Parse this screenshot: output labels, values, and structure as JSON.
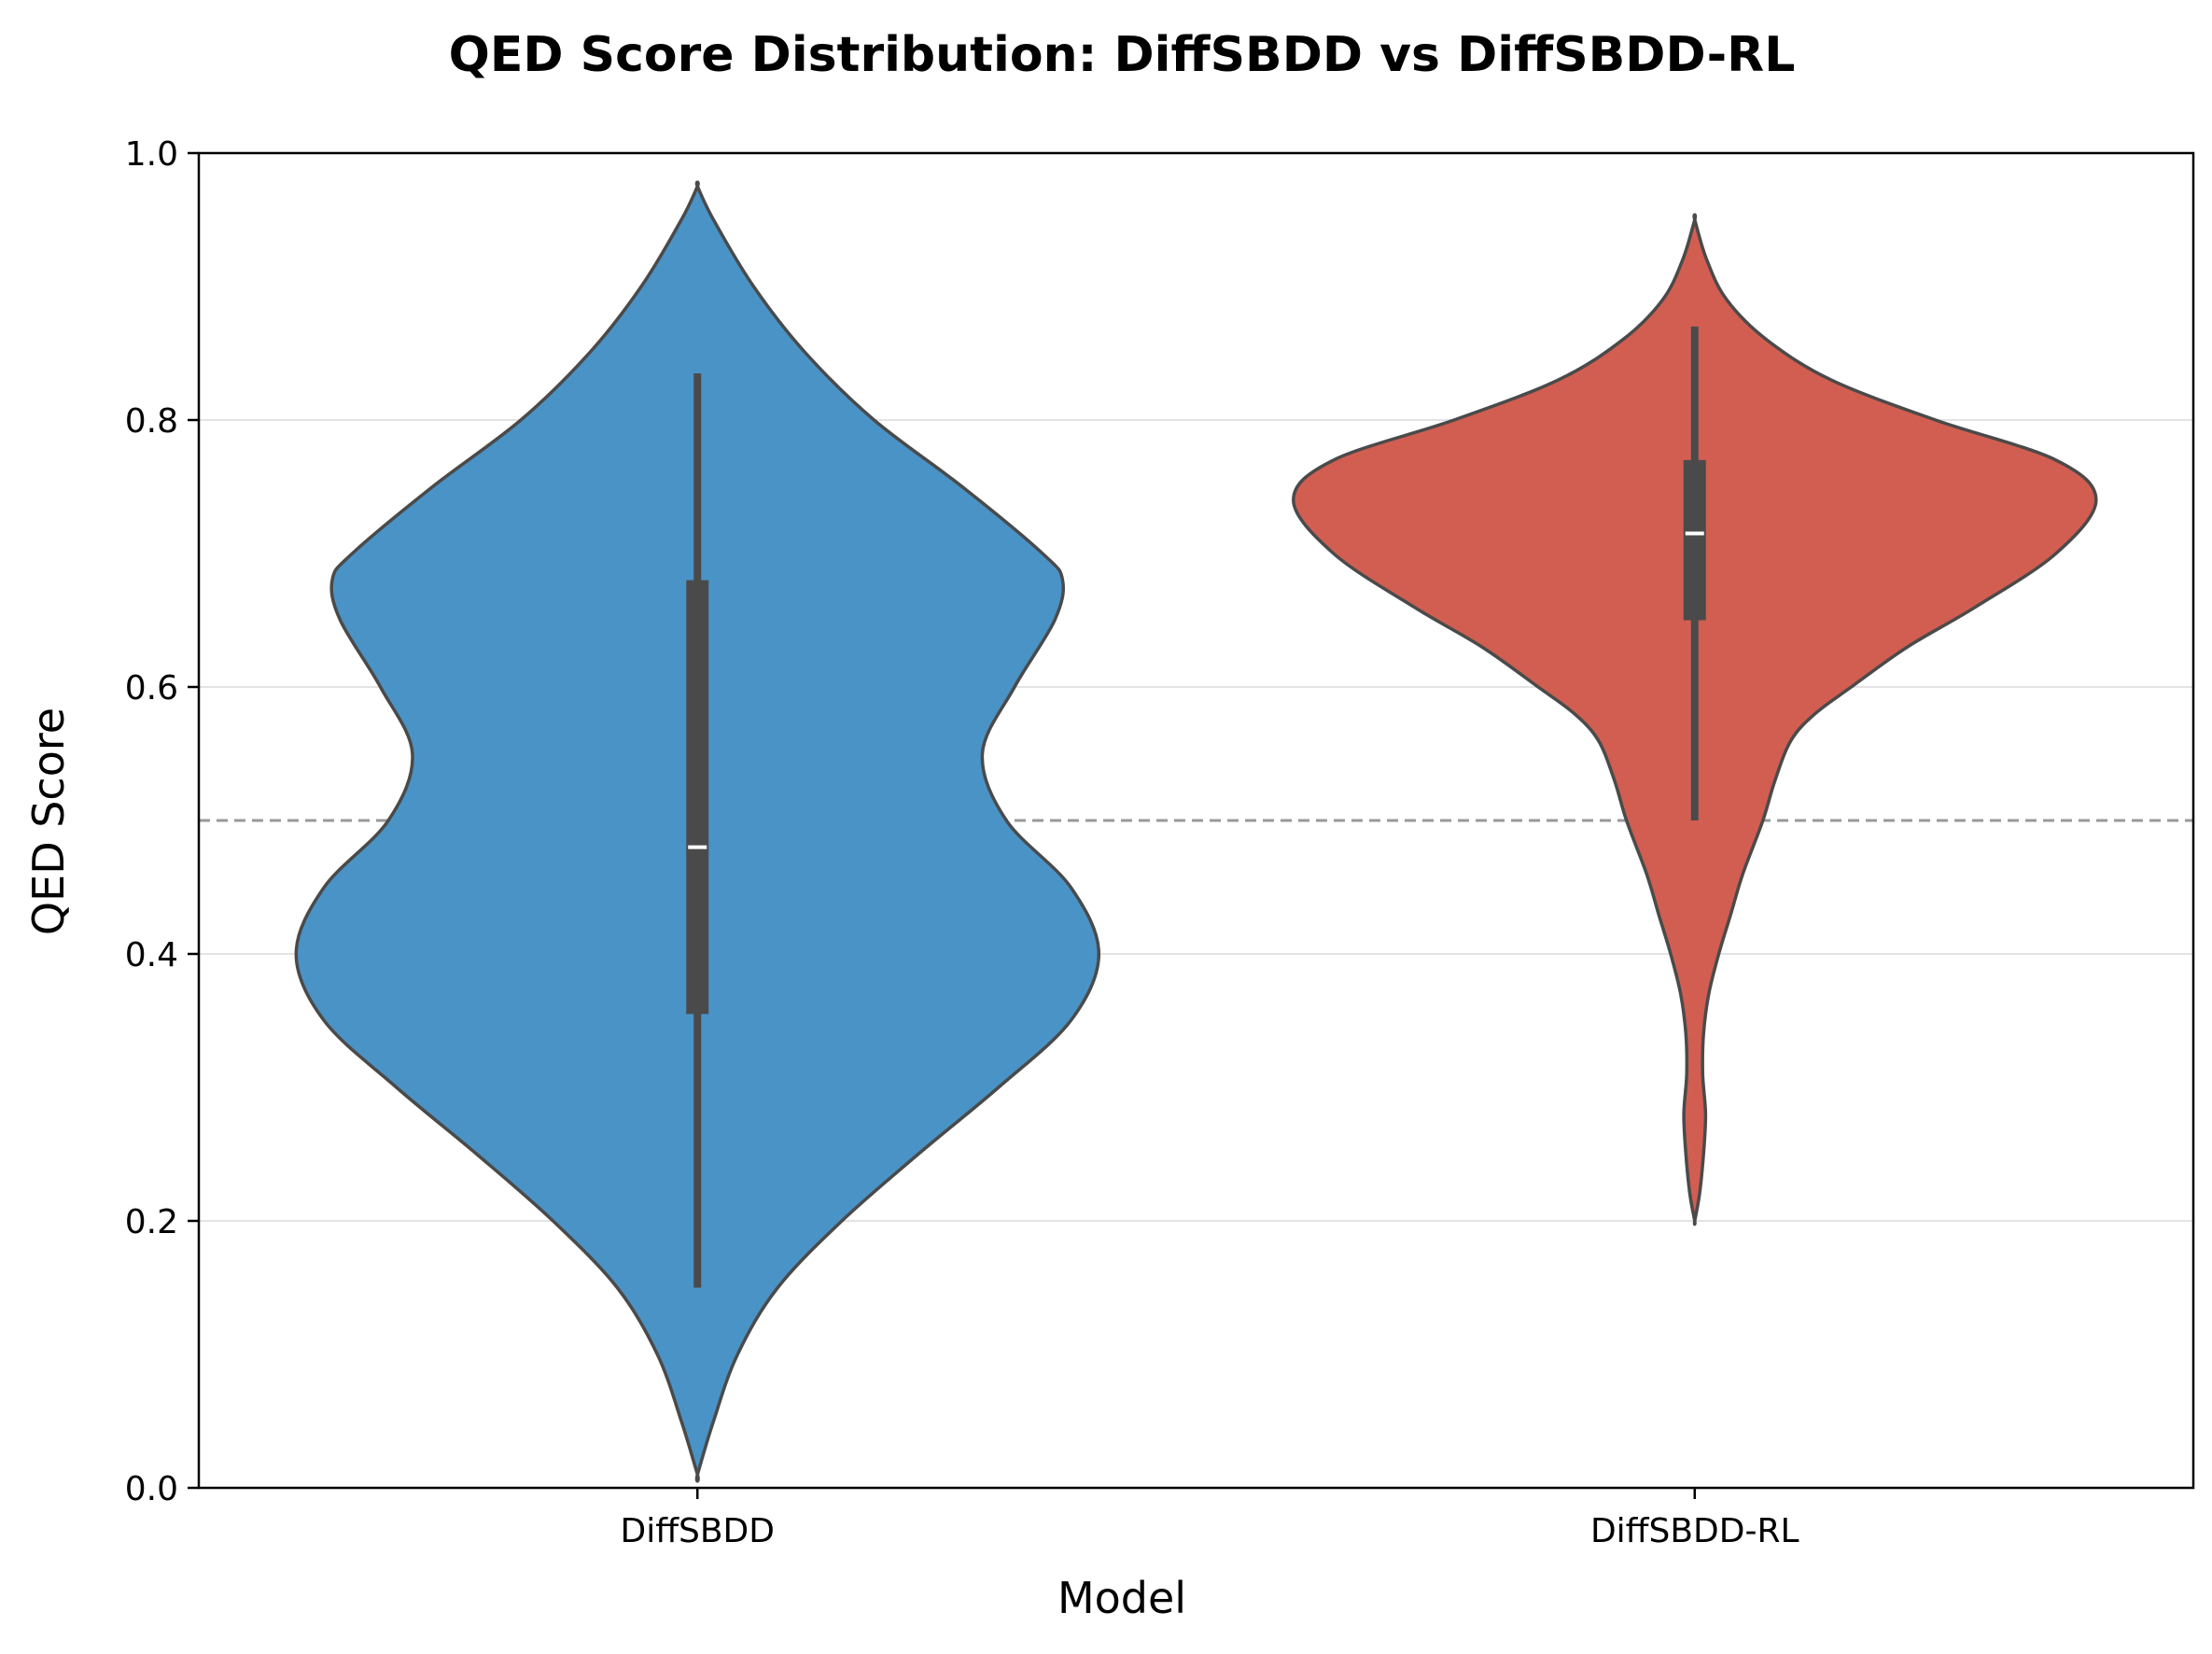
{
  "chart_data": {
    "type": "violin",
    "title": "QED Score Distribution: DiffSBDD vs DiffSBDD-RL",
    "xlabel": "Model",
    "ylabel": "QED Score",
    "categories": [
      "DiffSBDD",
      "DiffSBDD-RL"
    ],
    "ylim": [
      0,
      1
    ],
    "yticks": [
      "0.0",
      "0.2",
      "0.4",
      "0.6",
      "0.8",
      "1.0"
    ],
    "grid": "horizontal",
    "reference_line": {
      "y": 0.5,
      "style": "dashed",
      "color": "#999999"
    },
    "series": [
      {
        "name": "DiffSBDD",
        "color": "#4A93C6",
        "edge_color": "#4a4a4a",
        "range": [
          0.01,
          0.975
        ],
        "whisker_low": 0.15,
        "q1": 0.355,
        "median": 0.48,
        "q3": 0.68,
        "whisker_high": 0.835,
        "density_profile": [
          [
            0.01,
            0.0
          ],
          [
            0.05,
            0.04
          ],
          [
            0.1,
            0.1
          ],
          [
            0.15,
            0.2
          ],
          [
            0.2,
            0.36
          ],
          [
            0.25,
            0.55
          ],
          [
            0.3,
            0.75
          ],
          [
            0.35,
            0.93
          ],
          [
            0.4,
            1.0
          ],
          [
            0.45,
            0.93
          ],
          [
            0.5,
            0.77
          ],
          [
            0.55,
            0.71
          ],
          [
            0.6,
            0.79
          ],
          [
            0.65,
            0.89
          ],
          [
            0.68,
            0.91
          ],
          [
            0.7,
            0.86
          ],
          [
            0.75,
            0.66
          ],
          [
            0.8,
            0.44
          ],
          [
            0.85,
            0.27
          ],
          [
            0.9,
            0.14
          ],
          [
            0.95,
            0.04
          ],
          [
            0.975,
            0.0
          ]
        ]
      },
      {
        "name": "DiffSBDD-RL",
        "color": "#D15E51",
        "edge_color": "#4a4a4a",
        "range": [
          0.2,
          0.95
        ],
        "whisker_low": 0.5,
        "q1": 0.65,
        "median": 0.715,
        "q3": 0.77,
        "whisker_high": 0.87,
        "density_profile": [
          [
            0.2,
            0.0
          ],
          [
            0.22,
            0.012
          ],
          [
            0.25,
            0.022
          ],
          [
            0.28,
            0.027
          ],
          [
            0.31,
            0.02
          ],
          [
            0.34,
            0.022
          ],
          [
            0.37,
            0.035
          ],
          [
            0.4,
            0.06
          ],
          [
            0.43,
            0.09
          ],
          [
            0.46,
            0.12
          ],
          [
            0.5,
            0.17
          ],
          [
            0.53,
            0.2
          ],
          [
            0.56,
            0.24
          ],
          [
            0.58,
            0.3
          ],
          [
            0.6,
            0.39
          ],
          [
            0.63,
            0.53
          ],
          [
            0.66,
            0.7
          ],
          [
            0.7,
            0.9
          ],
          [
            0.74,
            1.0
          ],
          [
            0.77,
            0.9
          ],
          [
            0.8,
            0.6
          ],
          [
            0.83,
            0.34
          ],
          [
            0.86,
            0.18
          ],
          [
            0.89,
            0.08
          ],
          [
            0.92,
            0.03
          ],
          [
            0.95,
            0.0
          ]
        ]
      }
    ]
  }
}
